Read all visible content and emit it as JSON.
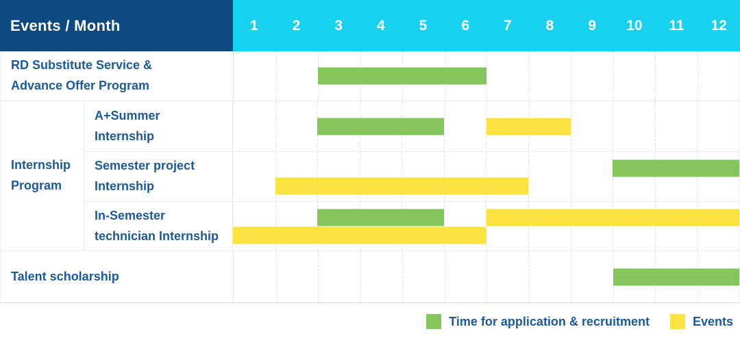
{
  "header": {
    "label": "Events / Month",
    "months": [
      "1",
      "2",
      "3",
      "4",
      "5",
      "6",
      "7",
      "8",
      "9",
      "10",
      "11",
      "12"
    ]
  },
  "colors": {
    "navy": "#0D4A81",
    "cyan": "#18D1EF",
    "green": "#84C55C",
    "yellow": "#FCE23F",
    "textblue": "#1A5A9B"
  },
  "chart_data": {
    "type": "bar",
    "subtype": "gantt-schedule",
    "xlabel": "Month",
    "x_range": [
      1,
      12
    ],
    "grid": "vertical-dashed",
    "legend_position": "bottom-right",
    "series_legend": [
      {
        "label": "Time for application & recruitment",
        "color": "green"
      },
      {
        "label": "Events",
        "color": "yellow"
      }
    ],
    "rows": [
      {
        "group": "",
        "label": "RD Substitute Service & Advance Offer Program",
        "label_lines": [
          "RD Substitute Service &",
          "Advance Offer Program"
        ],
        "bars": [
          {
            "series": "Time for application & recruitment",
            "color": "green",
            "start_month": 3,
            "end_month": 6,
            "line": 1
          }
        ]
      },
      {
        "group": "Internship Program",
        "label": "A+Summer Internship",
        "label_lines": [
          "A+Summer",
          "Internship"
        ],
        "bars": [
          {
            "series": "Time for application & recruitment",
            "color": "green",
            "start_month": 3,
            "end_month": 5,
            "line": 1
          },
          {
            "series": "Events",
            "color": "yellow",
            "start_month": 7,
            "end_month": 8,
            "line": 1
          }
        ]
      },
      {
        "group": "Internship Program",
        "label": "Semester project Internship",
        "label_lines": [
          "Semester project",
          "Internship"
        ],
        "bars": [
          {
            "series": "Time for application & recruitment",
            "color": "green",
            "start_month": 10,
            "end_month": 12,
            "line": 1
          },
          {
            "series": "Events",
            "color": "yellow",
            "start_month": 2,
            "end_month": 7,
            "line": 2
          }
        ]
      },
      {
        "group": "Internship Program",
        "label": "In-Semester technician Internship",
        "label_lines": [
          "In-Semester",
          "technician Internship"
        ],
        "bars": [
          {
            "series": "Time for application & recruitment",
            "color": "green",
            "start_month": 3,
            "end_month": 5,
            "line": 1
          },
          {
            "series": "Events",
            "color": "yellow",
            "start_month": 7,
            "end_month": 12,
            "line": 1
          },
          {
            "series": "Events",
            "color": "yellow",
            "start_month": 1,
            "end_month": 6,
            "line": 2
          }
        ]
      },
      {
        "group": "",
        "label": "Talent scholarship",
        "label_lines": [
          "Talent scholarship"
        ],
        "bars": [
          {
            "series": "Time for application & recruitment",
            "color": "green",
            "start_month": 10,
            "end_month": 12,
            "line": 1
          }
        ]
      }
    ],
    "group_label_lines": [
      "Internship",
      "Program"
    ]
  },
  "legend": {
    "application_label": "Time for application & recruitment",
    "events_label": "Events"
  }
}
